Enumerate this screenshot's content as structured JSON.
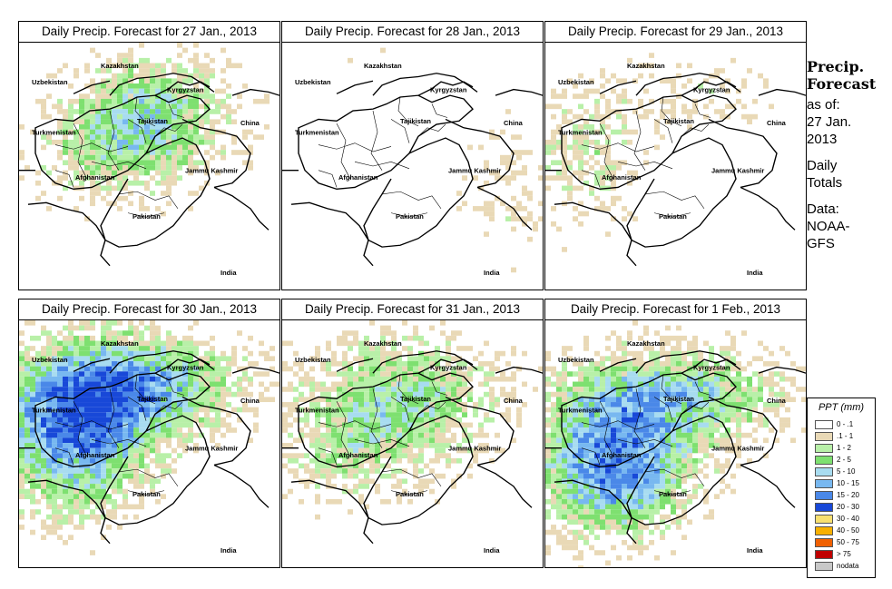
{
  "panels": [
    {
      "title": "Daily Precip. Forecast for  27 Jan., 2013",
      "intensity": 0.55,
      "seed": 11,
      "focus": "northeast"
    },
    {
      "title": "Daily Precip. Forecast for  28 Jan., 2013",
      "intensity": 0.18,
      "seed": 23,
      "focus": "east"
    },
    {
      "title": "Daily Precip. Forecast for  29 Jan., 2013",
      "intensity": 0.3,
      "seed": 37,
      "focus": "west"
    },
    {
      "title": "Daily Precip. Forecast for  30 Jan., 2013",
      "intensity": 0.8,
      "seed": 41,
      "focus": "west-heavy"
    },
    {
      "title": "Daily Precip. Forecast for  31 Jan., 2013",
      "intensity": 0.5,
      "seed": 53,
      "focus": "north"
    },
    {
      "title": "Daily Precip. Forecast for  1 Feb., 2013",
      "intensity": 0.85,
      "seed": 67,
      "focus": "southwest"
    }
  ],
  "map_labels": {
    "kazakhstan": "Kazakhstan",
    "uzbekistan": "Uzbekistan",
    "kyrgyzstan": "Kyrgyzstan",
    "turkmenistan": "Turkmenistan",
    "tajikistan": "Tajikistan",
    "china": "China",
    "afghanistan": "Afghanistan",
    "jammu_kashmir": "Jammu Kashmir",
    "pakistan": "Pakistan",
    "india": "India"
  },
  "sidebar": {
    "heading1": "Precip.",
    "heading2": "Forecast",
    "asof1": "as of:",
    "asof2": "27 Jan.",
    "asof3": "2013",
    "totals1": "Daily",
    "totals2": "Totals",
    "data1": "Data:",
    "data2": "NOAA-",
    "data3": "GFS"
  },
  "legend": {
    "title": "PPT (mm)",
    "items": [
      {
        "label": "0 - .1",
        "color": "#ffffff"
      },
      {
        "label": ".1 - 1",
        "color": "#e9d9b6"
      },
      {
        "label": "1 - 2",
        "color": "#b8f0a8"
      },
      {
        "label": "2 - 5",
        "color": "#7ee070"
      },
      {
        "label": "5 - 10",
        "color": "#a8dcf0"
      },
      {
        "label": "10 - 15",
        "color": "#78b8f0"
      },
      {
        "label": "15 - 20",
        "color": "#4a88e8"
      },
      {
        "label": "20 - 30",
        "color": "#1848d8"
      },
      {
        "label": "30 - 40",
        "color": "#f8e070"
      },
      {
        "label": "40 - 50",
        "color": "#f8b000"
      },
      {
        "label": "50 - 75",
        "color": "#f06000"
      },
      {
        "label": "> 75",
        "color": "#c00000"
      },
      {
        "label": "nodata",
        "color": "#c8c8c8"
      }
    ]
  }
}
